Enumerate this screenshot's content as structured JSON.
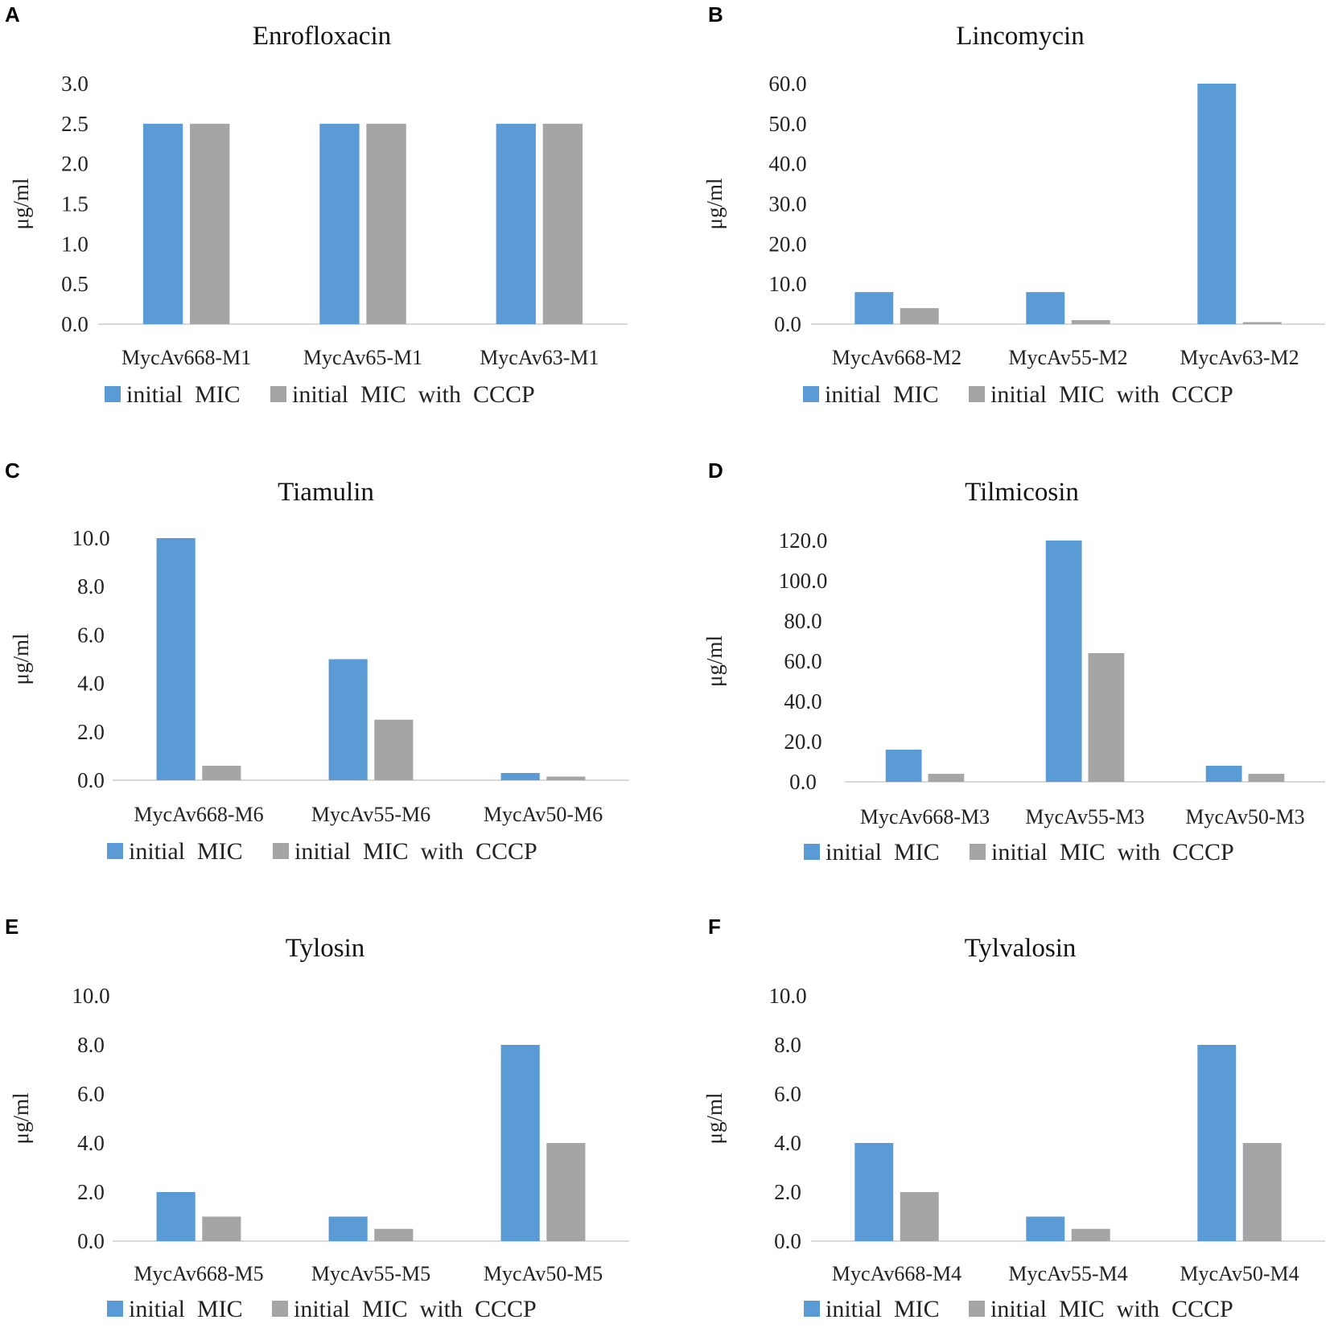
{
  "colors": {
    "initial": "#5b9bd5",
    "cccp": "#a5a5a5",
    "axis": "#d9d9d9"
  },
  "chart_data": [
    {
      "panel": "A",
      "type": "bar",
      "title": "Enrofloxacin",
      "xlabel": "",
      "ylabel": "μg/ml",
      "ylim": [
        0,
        3
      ],
      "ytick_step": 0.5,
      "yticks": [
        "0.0",
        "0.5",
        "1.0",
        "1.5",
        "2.0",
        "2.5",
        "3.0"
      ],
      "categories": [
        "MycAv668-M1",
        "MycAv65-M1",
        "MycAv63-M1"
      ],
      "series": [
        {
          "name": "initial  MIC",
          "values": [
            2.5,
            2.5,
            2.5
          ]
        },
        {
          "name": "initial  MIC  with  CCCP",
          "values": [
            2.5,
            2.5,
            2.5
          ]
        }
      ],
      "legend": "bottom"
    },
    {
      "panel": "B",
      "type": "bar",
      "title": "Lincomycin",
      "xlabel": "",
      "ylabel": "μg/ml",
      "ylim": [
        0,
        60
      ],
      "ytick_step": 10,
      "yticks": [
        "0.0",
        "10.0",
        "20.0",
        "30.0",
        "40.0",
        "50.0",
        "60.0"
      ],
      "categories": [
        "MycAv668-M2",
        "MycAv55-M2",
        "MycAv63-M2"
      ],
      "series": [
        {
          "name": "initial  MIC",
          "values": [
            8,
            8,
            60
          ]
        },
        {
          "name": "initial  MIC  with  CCCP",
          "values": [
            4,
            1,
            0.5
          ]
        }
      ],
      "legend": "bottom"
    },
    {
      "panel": "C",
      "type": "bar",
      "title": "Tiamulin",
      "xlabel": "",
      "ylabel": "μg/ml",
      "ylim": [
        0,
        10
      ],
      "ytick_step": 2,
      "yticks": [
        "0.0",
        "2.0",
        "4.0",
        "6.0",
        "8.0",
        "10.0"
      ],
      "categories": [
        "MycAv668-M6",
        "MycAv55-M6",
        "MycAv50-M6"
      ],
      "series": [
        {
          "name": "initial  MIC",
          "values": [
            10,
            5,
            0.3
          ]
        },
        {
          "name": "initial  MIC  with  CCCP",
          "values": [
            0.6,
            2.5,
            0.15
          ]
        }
      ],
      "legend": "bottom"
    },
    {
      "panel": "D",
      "type": "bar",
      "title": "Tilmicosin",
      "xlabel": "",
      "ylabel": "μg/ml",
      "ylim": [
        0,
        120
      ],
      "ytick_step": 20,
      "yticks": [
        "0.0",
        "20.0",
        "40.0",
        "60.0",
        "80.0",
        "100.0",
        "120.0"
      ],
      "categories": [
        "MycAv668-M3",
        "MycAv55-M3",
        "MycAv50-M3"
      ],
      "series": [
        {
          "name": "initial  MIC",
          "values": [
            16,
            120,
            8
          ]
        },
        {
          "name": "initial  MIC  with  CCCP",
          "values": [
            4,
            64,
            4
          ]
        }
      ],
      "legend": "bottom"
    },
    {
      "panel": "E",
      "type": "bar",
      "title": "Tylosin",
      "xlabel": "",
      "ylabel": "μg/ml",
      "ylim": [
        0,
        10
      ],
      "ytick_step": 2,
      "yticks": [
        "0.0",
        "2.0",
        "4.0",
        "6.0",
        "8.0",
        "10.0"
      ],
      "categories": [
        "MycAv668-M5",
        "MycAv55-M5",
        "MycAv50-M5"
      ],
      "series": [
        {
          "name": "initial  MIC",
          "values": [
            2,
            1,
            8
          ]
        },
        {
          "name": "initial  MIC  with  CCCP",
          "values": [
            1,
            0.5,
            4
          ]
        }
      ],
      "legend": "bottom"
    },
    {
      "panel": "F",
      "type": "bar",
      "title": "Tylvalosin",
      "xlabel": "",
      "ylabel": "μg/ml",
      "ylim": [
        0,
        10
      ],
      "ytick_step": 2,
      "yticks": [
        "0.0",
        "2.0",
        "4.0",
        "6.0",
        "8.0",
        "10.0"
      ],
      "categories": [
        "MycAv668-M4",
        "MycAv55-M4",
        "MycAv50-M4"
      ],
      "series": [
        {
          "name": "initial  MIC",
          "values": [
            4,
            1,
            8
          ]
        },
        {
          "name": "initial  MIC  with  CCCP",
          "values": [
            2,
            0.5,
            4
          ]
        }
      ],
      "legend": "bottom"
    }
  ]
}
